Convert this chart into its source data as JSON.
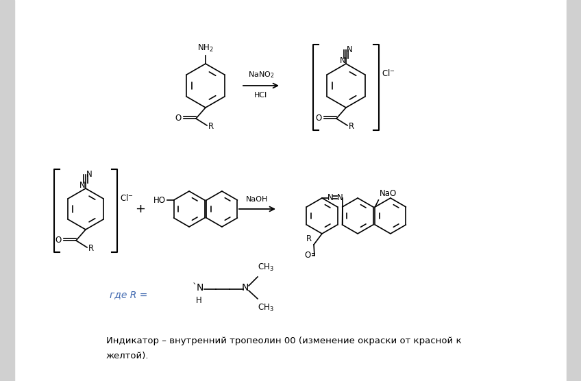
{
  "background_color": "#ffffff",
  "text_color": "#000000",
  "blue_text_color": "#4169b0",
  "fig_width": 8.48,
  "fig_height": 5.56,
  "dpi": 100,
  "indicator_text": "Индикатор – внутренний тропеолин 00 (изменение окраски от красной к",
  "indicator_text2": "желтой).",
  "gde_text": "где R ="
}
